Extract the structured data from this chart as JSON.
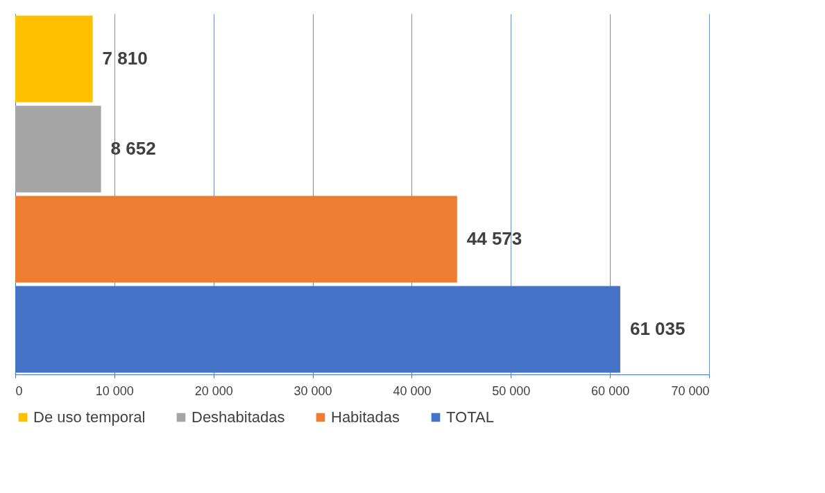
{
  "chart_data": {
    "type": "bar",
    "orientation": "horizontal",
    "categories": [
      null,
      null,
      null,
      null
    ],
    "series": [
      {
        "name": "De uso temporal",
        "color": "#ffc000",
        "values": [
          7810,
          null,
          null,
          null
        ],
        "value_labels": [
          "7 810",
          null,
          null,
          null
        ]
      },
      {
        "name": "Deshabitadas",
        "color": "#a5a5a5",
        "values": [
          null,
          8652,
          null,
          null
        ],
        "value_labels": [
          null,
          "8 652",
          null,
          null
        ]
      },
      {
        "name": "Habitadas",
        "color": "#ed7d31",
        "values": [
          null,
          null,
          44573,
          null
        ],
        "value_labels": [
          null,
          null,
          "44 573",
          null
        ]
      },
      {
        "name": "TOTAL",
        "color": "#4472c4",
        "values": [
          null,
          null,
          null,
          61035
        ],
        "value_labels": [
          null,
          null,
          null,
          "61 035"
        ]
      }
    ],
    "xlim": [
      0,
      70000
    ],
    "xticks": [
      0,
      {
        "value": 10000,
        "label": "10 000"
      },
      {
        "value": 20000,
        "label": "20 000"
      },
      {
        "value": 30000,
        "label": "30 000"
      },
      {
        "value": 40000,
        "label": "40 000"
      },
      {
        "value": 50000,
        "label": "50 000"
      },
      {
        "value": 60000,
        "label": "60 000"
      },
      {
        "value": 70000,
        "label": "70 000"
      }
    ],
    "grid": "x",
    "legend": "bottom"
  }
}
